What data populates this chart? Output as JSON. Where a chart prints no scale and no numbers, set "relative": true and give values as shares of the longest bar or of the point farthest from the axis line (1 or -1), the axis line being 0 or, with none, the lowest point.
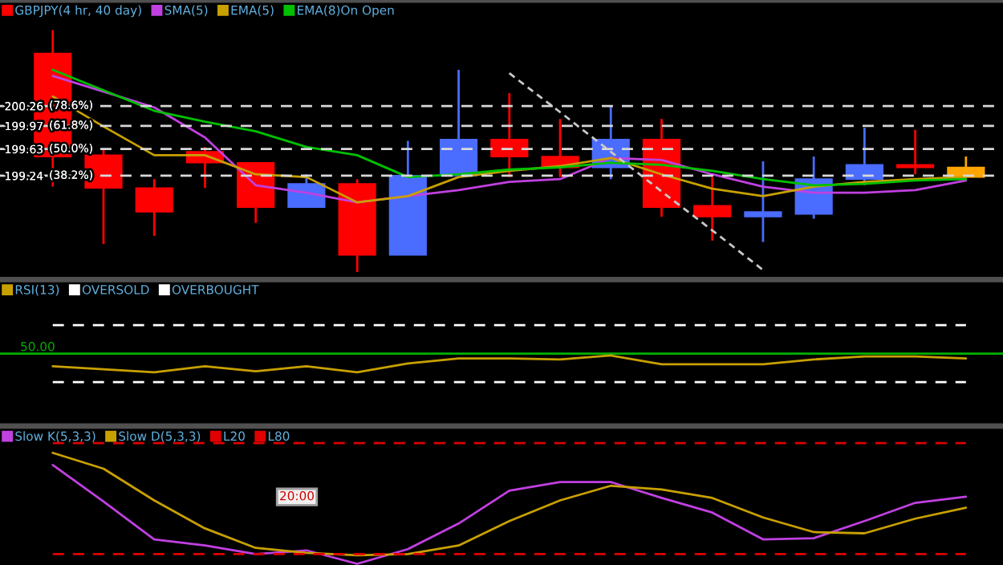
{
  "chart_data": [
    {
      "type": "candlestick",
      "categories": [
        null,
        null,
        null,
        null,
        null,
        null,
        null,
        null,
        null,
        null,
        null,
        null,
        null,
        null,
        null,
        null,
        null,
        null,
        null
      ],
      "ylim": [
        197.76,
        201.77
      ],
      "yticks": [
        199.24,
        199.63,
        199.97,
        200.26
      ],
      "tick_labels": "y",
      "grid": "y",
      "legend": "top left",
      "annotations": [
        "(38.2%)",
        "(50.0%)",
        "(61.8%)",
        "(78.6%)"
      ],
      "series": [
        {
          "name": "GBPJPY(4 hr, 40 day)",
          "color": "#ff0000",
          "colors": [
            "#ff0000",
            "#ff0000",
            "#ff0000",
            "#ff0000",
            "#ff0000",
            "#4a6cff",
            "#ff0000",
            "#4a6cff",
            "#4a6cff",
            "#ff0000",
            "#ff0000",
            "#4a6cff",
            "#ff0000",
            "#ff0000",
            "#4a6cff",
            "#4a6cff",
            "#4a6cff",
            "#ff0000",
            "#ffa500"
          ],
          "ohlc": [
            [
              201.03,
              201.37,
              199.08,
              199.52
            ],
            [
              199.54,
              199.63,
              198.24,
              199.06
            ],
            [
              199.06,
              199.19,
              198.36,
              198.71
            ],
            [
              199.59,
              199.66,
              199.06,
              199.43
            ],
            [
              199.43,
              199.43,
              198.55,
              198.78
            ],
            [
              198.78,
              199.26,
              198.78,
              199.12
            ],
            [
              199.12,
              199.19,
              197.83,
              198.08
            ],
            [
              198.08,
              199.75,
              198.08,
              199.24
            ],
            [
              199.24,
              200.79,
              199.24,
              199.77
            ],
            [
              199.77,
              200.45,
              199.22,
              199.52
            ],
            [
              199.52,
              200.07,
              199.22,
              199.36
            ],
            [
              199.36,
              200.26,
              199.19,
              199.77
            ],
            [
              199.77,
              200.07,
              198.64,
              198.78
            ],
            [
              198.8,
              199.22,
              198.29,
              198.64
            ],
            [
              198.64,
              199.45,
              198.27,
              198.71
            ],
            [
              198.68,
              199.52,
              198.61,
              199.19
            ],
            [
              199.19,
              199.94,
              199.1,
              199.4
            ],
            [
              199.4,
              199.91,
              199.26,
              199.36
            ],
            [
              199.36,
              199.52,
              199.22,
              199.22
            ]
          ]
        },
        {
          "type": "line",
          "name": "SMA(5)",
          "color": "#c040e0",
          "values": [
            200.7,
            200.47,
            200.24,
            199.8,
            199.1,
            198.99,
            198.85,
            198.94,
            199.03,
            199.15,
            199.19,
            199.5,
            199.47,
            199.26,
            199.08,
            198.99,
            198.99,
            199.03,
            199.17
          ]
        },
        {
          "type": "line",
          "name": "EMA(5)",
          "color": "#c8a000",
          "values": [
            200.4,
            199.96,
            199.54,
            199.54,
            199.26,
            199.22,
            198.85,
            198.94,
            199.22,
            199.31,
            199.38,
            199.5,
            199.26,
            199.05,
            198.94,
            199.08,
            199.15,
            199.19,
            199.22
          ]
        },
        {
          "type": "line",
          "name": "EMA(8)On Open",
          "color": "#00c000",
          "values": [
            200.79,
            200.49,
            200.19,
            200.03,
            199.89,
            199.66,
            199.54,
            199.22,
            199.26,
            199.33,
            199.36,
            199.43,
            199.4,
            199.31,
            199.19,
            199.1,
            199.12,
            199.17,
            199.19
          ]
        },
        {
          "type": "line",
          "color": "#c8c8c8",
          "line_style": "dashed",
          "values": [
            null,
            null,
            null,
            null,
            null,
            null,
            null,
            null,
            null,
            200.74,
            200.17,
            199.59,
            199.01,
            198.44,
            197.86,
            null,
            null,
            null,
            null
          ]
        }
      ]
    },
    {
      "type": "line",
      "relative": true,
      "categories": [
        null,
        null,
        null,
        null,
        null,
        null,
        null,
        null,
        null,
        null,
        null,
        null,
        null,
        null,
        null,
        null,
        null,
        null,
        null
      ],
      "tick_labels": false,
      "legend": "top left",
      "series": [
        {
          "name": "RSI(13)",
          "color": "#c8a000",
          "values": [
            0.58,
            0.55,
            0.52,
            0.58,
            0.53,
            0.58,
            0.52,
            0.61,
            0.66,
            0.66,
            0.65,
            0.69,
            0.6,
            0.6,
            0.6,
            0.65,
            0.68,
            0.68,
            0.66
          ]
        },
        {
          "name": "OVERSOLD",
          "color": "#ffffff",
          "line_style": "dashed",
          "values": [
            0.42,
            0.42,
            0.42,
            0.42,
            0.42,
            0.42,
            0.42,
            0.42,
            0.42,
            0.42,
            0.42,
            0.42,
            0.42,
            0.42,
            0.42,
            0.42,
            0.42,
            0.42,
            0.42
          ]
        },
        {
          "name": "OVERBOUGHT",
          "color": "#ffffff",
          "line_style": "dashed",
          "values": [
            1,
            1,
            1,
            1,
            1,
            1,
            1,
            1,
            1,
            1,
            1,
            1,
            1,
            1,
            1,
            1,
            1,
            1,
            1
          ]
        }
      ],
      "ref_lines": [
        {
          "axis": "y",
          "value": 0.71,
          "color": "#00b000"
        }
      ],
      "annotations": [
        "50.00"
      ]
    },
    {
      "type": "line",
      "relative": true,
      "categories": [
        null,
        null,
        null,
        null,
        null,
        null,
        null,
        null,
        null,
        null,
        null,
        null,
        null,
        null,
        null,
        null,
        null,
        null,
        null
      ],
      "tick_labels": false,
      "legend": "top left",
      "series": [
        {
          "name": "Slow K(5,3,3)",
          "color": "#c040e0",
          "values": [
            0.82,
            0.52,
            0.21,
            0.16,
            0.09,
            0.12,
            0.01,
            0.13,
            0.34,
            0.61,
            0.68,
            0.68,
            0.55,
            0.43,
            0.21,
            0.22,
            0.36,
            0.51,
            0.56
          ]
        },
        {
          "name": "Slow D(5,3,3)",
          "color": "#c8a000",
          "values": [
            0.92,
            0.79,
            0.53,
            0.3,
            0.14,
            0.1,
            0.08,
            0.09,
            0.16,
            0.36,
            0.53,
            0.65,
            0.62,
            0.55,
            0.39,
            0.27,
            0.26,
            0.38,
            0.47
          ]
        },
        {
          "name": "L20",
          "color": "#e00000",
          "line_style": "dashed",
          "values": [
            0.09,
            0.09,
            0.09,
            0.09,
            0.09,
            0.09,
            0.09,
            0.09,
            0.09,
            0.09,
            0.09,
            0.09,
            0.09,
            0.09,
            0.09,
            0.09,
            0.09,
            0.09,
            0.09
          ]
        },
        {
          "name": "L80",
          "color": "#e00000",
          "line_style": "dashed",
          "values": [
            1,
            1,
            1,
            1,
            1,
            1,
            1,
            1,
            1,
            1,
            1,
            1,
            1,
            1,
            1,
            1,
            1,
            1,
            1
          ]
        }
      ],
      "annotations": [
        "20:00"
      ]
    }
  ]
}
